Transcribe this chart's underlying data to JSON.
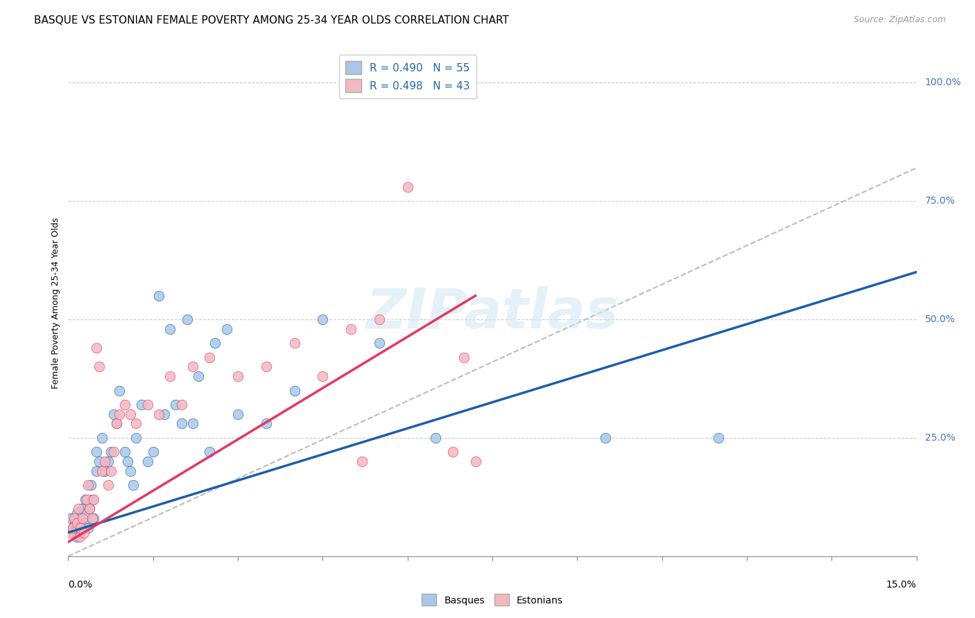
{
  "title": "BASQUE VS ESTONIAN FEMALE POVERTY AMONG 25-34 YEAR OLDS CORRELATION CHART",
  "source": "Source: ZipAtlas.com",
  "ylabel": "Female Poverty Among 25-34 Year Olds",
  "xlim": [
    0.0,
    15.0
  ],
  "ylim": [
    0.0,
    107.0
  ],
  "watermark": "ZIPatlas",
  "legend_blue_r": "R = 0.490",
  "legend_blue_n": "N = 55",
  "legend_pink_r": "R = 0.498",
  "legend_pink_n": "N = 43",
  "blue_color": "#a8c8e8",
  "pink_color": "#f4b8c0",
  "blue_line_color": "#1a5fa8",
  "pink_line_color": "#e8365d",
  "gray_dashed_color": "#bbbbbb",
  "blue_trendline_x0": 0.0,
  "blue_trendline_y0": 5.0,
  "blue_trendline_x1": 15.0,
  "blue_trendline_y1": 60.0,
  "pink_trendline_x0": 0.0,
  "pink_trendline_y0": 3.0,
  "pink_trendline_x1": 7.2,
  "pink_trendline_y1": 55.0,
  "gray_dash_x0": 0.0,
  "gray_dash_y0": 0.0,
  "gray_dash_x1": 15.0,
  "gray_dash_y1": 82.0,
  "basque_x": [
    0.05,
    0.08,
    0.1,
    0.12,
    0.15,
    0.15,
    0.18,
    0.2,
    0.22,
    0.25,
    0.28,
    0.3,
    0.32,
    0.35,
    0.38,
    0.4,
    0.42,
    0.45,
    0.5,
    0.5,
    0.55,
    0.6,
    0.65,
    0.7,
    0.75,
    0.8,
    0.85,
    0.9,
    1.0,
    1.05,
    1.1,
    1.15,
    1.2,
    1.3,
    1.4,
    1.5,
    1.6,
    1.7,
    1.8,
    1.9,
    2.0,
    2.1,
    2.2,
    2.3,
    2.5,
    2.6,
    2.8,
    3.0,
    3.5,
    4.0,
    4.5,
    5.5,
    6.5,
    9.5,
    11.5
  ],
  "basque_y": [
    8.0,
    6.0,
    5.0,
    7.0,
    4.0,
    9.0,
    6.0,
    5.0,
    8.0,
    10.0,
    7.0,
    12.0,
    9.0,
    6.0,
    10.0,
    15.0,
    12.0,
    8.0,
    18.0,
    22.0,
    20.0,
    25.0,
    18.0,
    20.0,
    22.0,
    30.0,
    28.0,
    35.0,
    22.0,
    20.0,
    18.0,
    15.0,
    25.0,
    32.0,
    20.0,
    22.0,
    55.0,
    30.0,
    48.0,
    32.0,
    28.0,
    50.0,
    28.0,
    38.0,
    22.0,
    45.0,
    48.0,
    30.0,
    28.0,
    35.0,
    50.0,
    45.0,
    25.0,
    25.0,
    25.0
  ],
  "estonian_x": [
    0.05,
    0.08,
    0.1,
    0.15,
    0.18,
    0.2,
    0.22,
    0.25,
    0.28,
    0.32,
    0.35,
    0.38,
    0.42,
    0.45,
    0.5,
    0.55,
    0.6,
    0.65,
    0.7,
    0.75,
    0.8,
    0.85,
    0.9,
    1.0,
    1.1,
    1.2,
    1.4,
    1.6,
    1.8,
    2.0,
    2.2,
    2.5,
    3.0,
    3.5,
    4.0,
    4.5,
    5.0,
    5.5,
    6.0,
    7.0,
    7.2,
    6.8,
    5.2
  ],
  "estonian_y": [
    5.0,
    6.0,
    8.0,
    7.0,
    10.0,
    4.0,
    6.0,
    8.0,
    5.0,
    12.0,
    15.0,
    10.0,
    8.0,
    12.0,
    44.0,
    40.0,
    18.0,
    20.0,
    15.0,
    18.0,
    22.0,
    28.0,
    30.0,
    32.0,
    30.0,
    28.0,
    32.0,
    30.0,
    38.0,
    32.0,
    40.0,
    42.0,
    38.0,
    40.0,
    45.0,
    38.0,
    48.0,
    50.0,
    78.0,
    42.0,
    20.0,
    22.0,
    20.0
  ],
  "title_fontsize": 11,
  "source_fontsize": 9,
  "axis_label_fontsize": 9,
  "marker_size": 110
}
